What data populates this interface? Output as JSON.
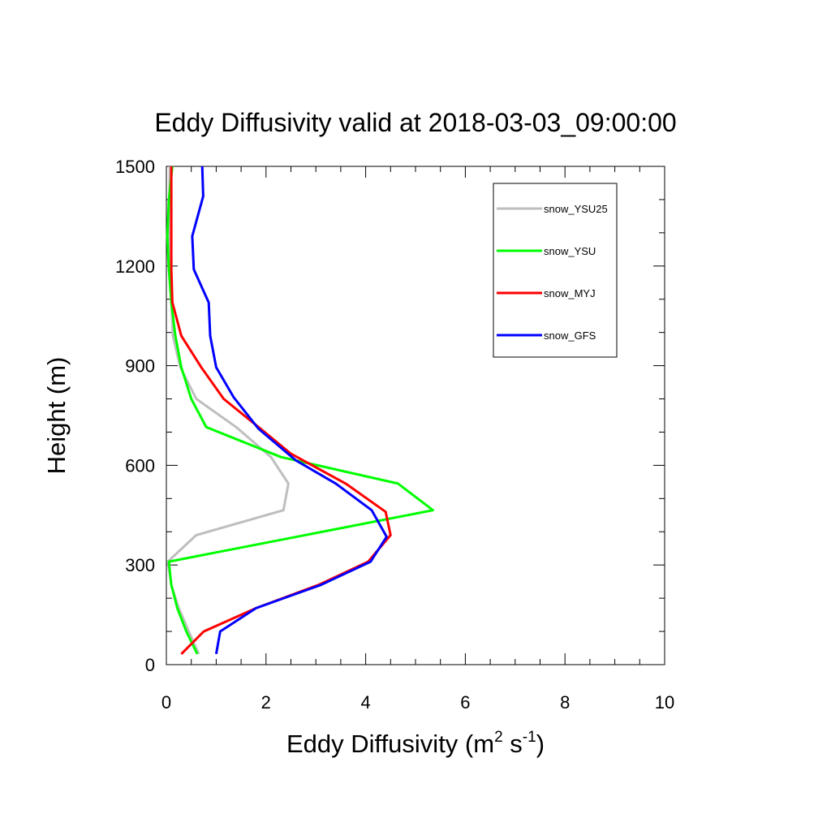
{
  "chart_data": {
    "type": "line",
    "title": "Eddy Diffusivity valid at 2018-03-03_09:00:00",
    "xlabel": {
      "base": "Eddy Diffusivity (m",
      "sup1": "2",
      "mid": " s",
      "sup2": "-1",
      "end": ")"
    },
    "ylabel": "Height (m)",
    "xlim": [
      0,
      10
    ],
    "ylim": [
      0,
      1500
    ],
    "x_ticks": [
      0,
      2,
      4,
      6,
      8,
      10
    ],
    "x_tick_labels": [
      "0",
      "2",
      "4",
      "6",
      "8",
      "10"
    ],
    "y_ticks": [
      0,
      300,
      600,
      900,
      1200,
      1500
    ],
    "y_tick_labels": [
      "0",
      "300",
      "600",
      "900",
      "1200",
      "1500"
    ],
    "grid": false,
    "legend_position": "top-right",
    "series": [
      {
        "name": "snow_YSU25",
        "color": "#bebebe",
        "points": [
          [
            0.65,
            32
          ],
          [
            0.45,
            100
          ],
          [
            0.25,
            170
          ],
          [
            0.1,
            240
          ],
          [
            0.03,
            310
          ],
          [
            0.6,
            390
          ],
          [
            2.35,
            465
          ],
          [
            2.45,
            545
          ],
          [
            2.1,
            625
          ],
          [
            1.4,
            715
          ],
          [
            0.6,
            800
          ],
          [
            0.28,
            895
          ],
          [
            0.13,
            990
          ],
          [
            0.1,
            1090
          ],
          [
            0.08,
            1190
          ],
          [
            0.07,
            1290
          ],
          [
            0.06,
            1400
          ],
          [
            0.07,
            1500
          ]
        ]
      },
      {
        "name": "snow_YSU",
        "color": "#00ff00",
        "points": [
          [
            0.62,
            32
          ],
          [
            0.4,
            100
          ],
          [
            0.22,
            170
          ],
          [
            0.1,
            240
          ],
          [
            0.05,
            310
          ],
          [
            5.35,
            465
          ],
          [
            4.65,
            545
          ],
          [
            2.3,
            625
          ],
          [
            0.8,
            715
          ],
          [
            0.5,
            800
          ],
          [
            0.3,
            895
          ],
          [
            0.18,
            990
          ],
          [
            0.1,
            1090
          ],
          [
            0.05,
            1190
          ],
          [
            0.02,
            1290
          ],
          [
            0.05,
            1400
          ],
          [
            0.12,
            1500
          ]
        ]
      },
      {
        "name": "snow_MYJ",
        "color": "#ff0000",
        "points": [
          [
            0.3,
            32
          ],
          [
            0.75,
            100
          ],
          [
            1.8,
            170
          ],
          [
            3.05,
            240
          ],
          [
            4.05,
            310
          ],
          [
            4.5,
            390
          ],
          [
            4.4,
            460
          ],
          [
            3.6,
            545
          ],
          [
            2.5,
            635
          ],
          [
            1.85,
            715
          ],
          [
            1.15,
            800
          ],
          [
            0.7,
            895
          ],
          [
            0.3,
            990
          ],
          [
            0.12,
            1090
          ],
          [
            0.1,
            1190
          ],
          [
            0.1,
            1290
          ],
          [
            0.1,
            1400
          ],
          [
            0.1,
            1500
          ]
        ]
      },
      {
        "name": "snow_GFS",
        "color": "#0000ff",
        "points": [
          [
            1.0,
            32
          ],
          [
            1.08,
            100
          ],
          [
            1.8,
            170
          ],
          [
            3.1,
            240
          ],
          [
            4.1,
            310
          ],
          [
            4.42,
            385
          ],
          [
            4.12,
            465
          ],
          [
            3.4,
            545
          ],
          [
            2.6,
            615
          ],
          [
            1.85,
            710
          ],
          [
            1.35,
            805
          ],
          [
            1.0,
            895
          ],
          [
            0.88,
            990
          ],
          [
            0.85,
            1090
          ],
          [
            0.55,
            1190
          ],
          [
            0.52,
            1290
          ],
          [
            0.74,
            1410
          ],
          [
            0.72,
            1500
          ]
        ]
      }
    ]
  }
}
